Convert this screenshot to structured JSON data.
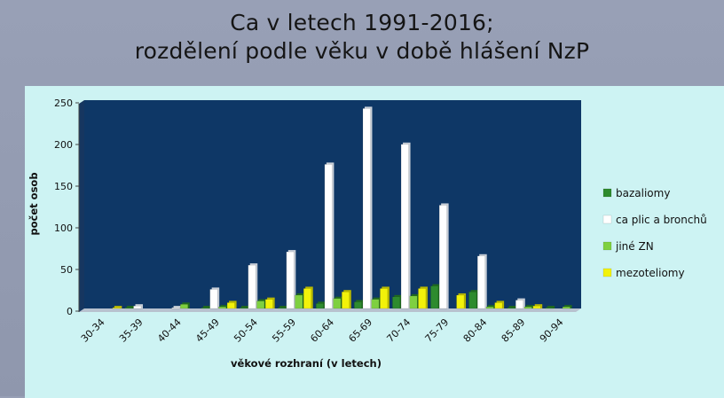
{
  "title": {
    "line1": "Ca v letech 1991-2016;",
    "line2": "rozdělení podle věku v době hlášení NzP"
  },
  "chart_data": {
    "type": "bar",
    "title": "Ca v letech 1991-2016; rozdělení podle věku v době hlášení NzP",
    "xlabel": "věkové rozhraní (v letech)",
    "ylabel": "počet osob",
    "ylim": [
      0,
      250
    ],
    "yticks": [
      0,
      50,
      100,
      150,
      200,
      250
    ],
    "grid": false,
    "legend_position": "right",
    "categories": [
      "30-34",
      "35-39",
      "40-44",
      "45-49",
      "50-54",
      "55-59",
      "60-64",
      "65-69",
      "70-74",
      "75-79",
      "80-84",
      "85-89",
      "90-94"
    ],
    "series": [
      {
        "name": "bazaliomy",
        "color": "#2e8b2e",
        "values": [
          0,
          1,
          0,
          1,
          1,
          1,
          6,
          8,
          14,
          27,
          20,
          1,
          1
        ]
      },
      {
        "name": "ca plic a bronchů",
        "color": "#ffffff",
        "values": [
          0,
          3,
          1,
          23,
          52,
          68,
          173,
          240,
          197,
          124,
          63,
          10,
          0
        ]
      },
      {
        "name": "jiné ZN",
        "color": "#7fd040",
        "values": [
          0,
          0,
          5,
          2,
          9,
          16,
          12,
          11,
          15,
          0,
          2,
          2,
          2
        ]
      },
      {
        "name": "mezoteliomy",
        "color": "#f2f20a",
        "values": [
          1,
          0,
          0,
          7,
          11,
          24,
          20,
          24,
          24,
          16,
          7,
          3,
          0
        ]
      }
    ]
  }
}
